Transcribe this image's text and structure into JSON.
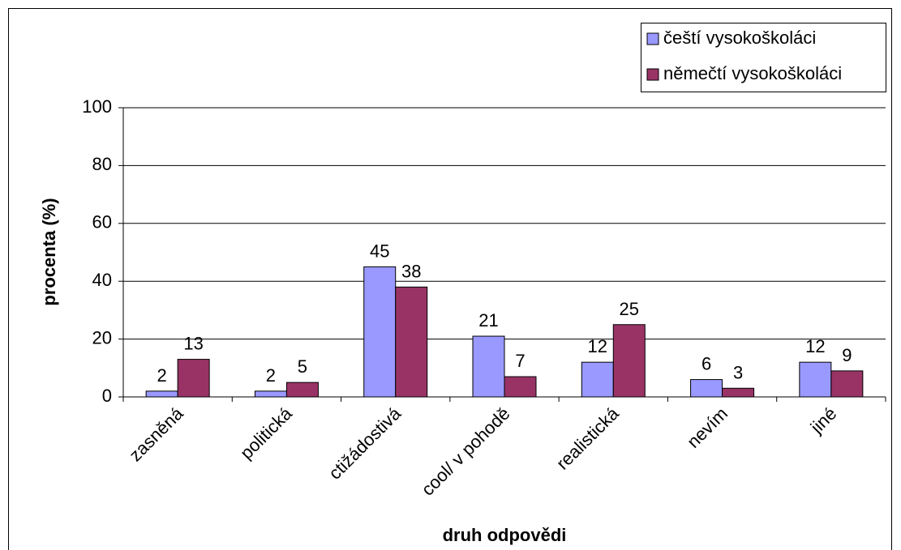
{
  "chart_data": {
    "type": "bar",
    "categories": [
      "zasněná",
      "politická",
      "ctižádostivá",
      "cool/ v pohodě",
      "realistická",
      "nevím",
      "jiné"
    ],
    "series": [
      {
        "name": "čeští vysokoškoláci",
        "color": "#9999ff",
        "values": [
          2,
          2,
          45,
          21,
          12,
          6,
          12
        ]
      },
      {
        "name": "němečtí vysokoškoláci",
        "color": "#993366",
        "values": [
          13,
          5,
          38,
          7,
          25,
          3,
          9
        ]
      }
    ],
    "ylim": [
      0,
      100
    ],
    "yticks": [
      0,
      20,
      40,
      60,
      80,
      100
    ],
    "grid": true,
    "y_label": "procenta (%)",
    "x_label": "druh odpovědi",
    "legend": "top-right"
  }
}
